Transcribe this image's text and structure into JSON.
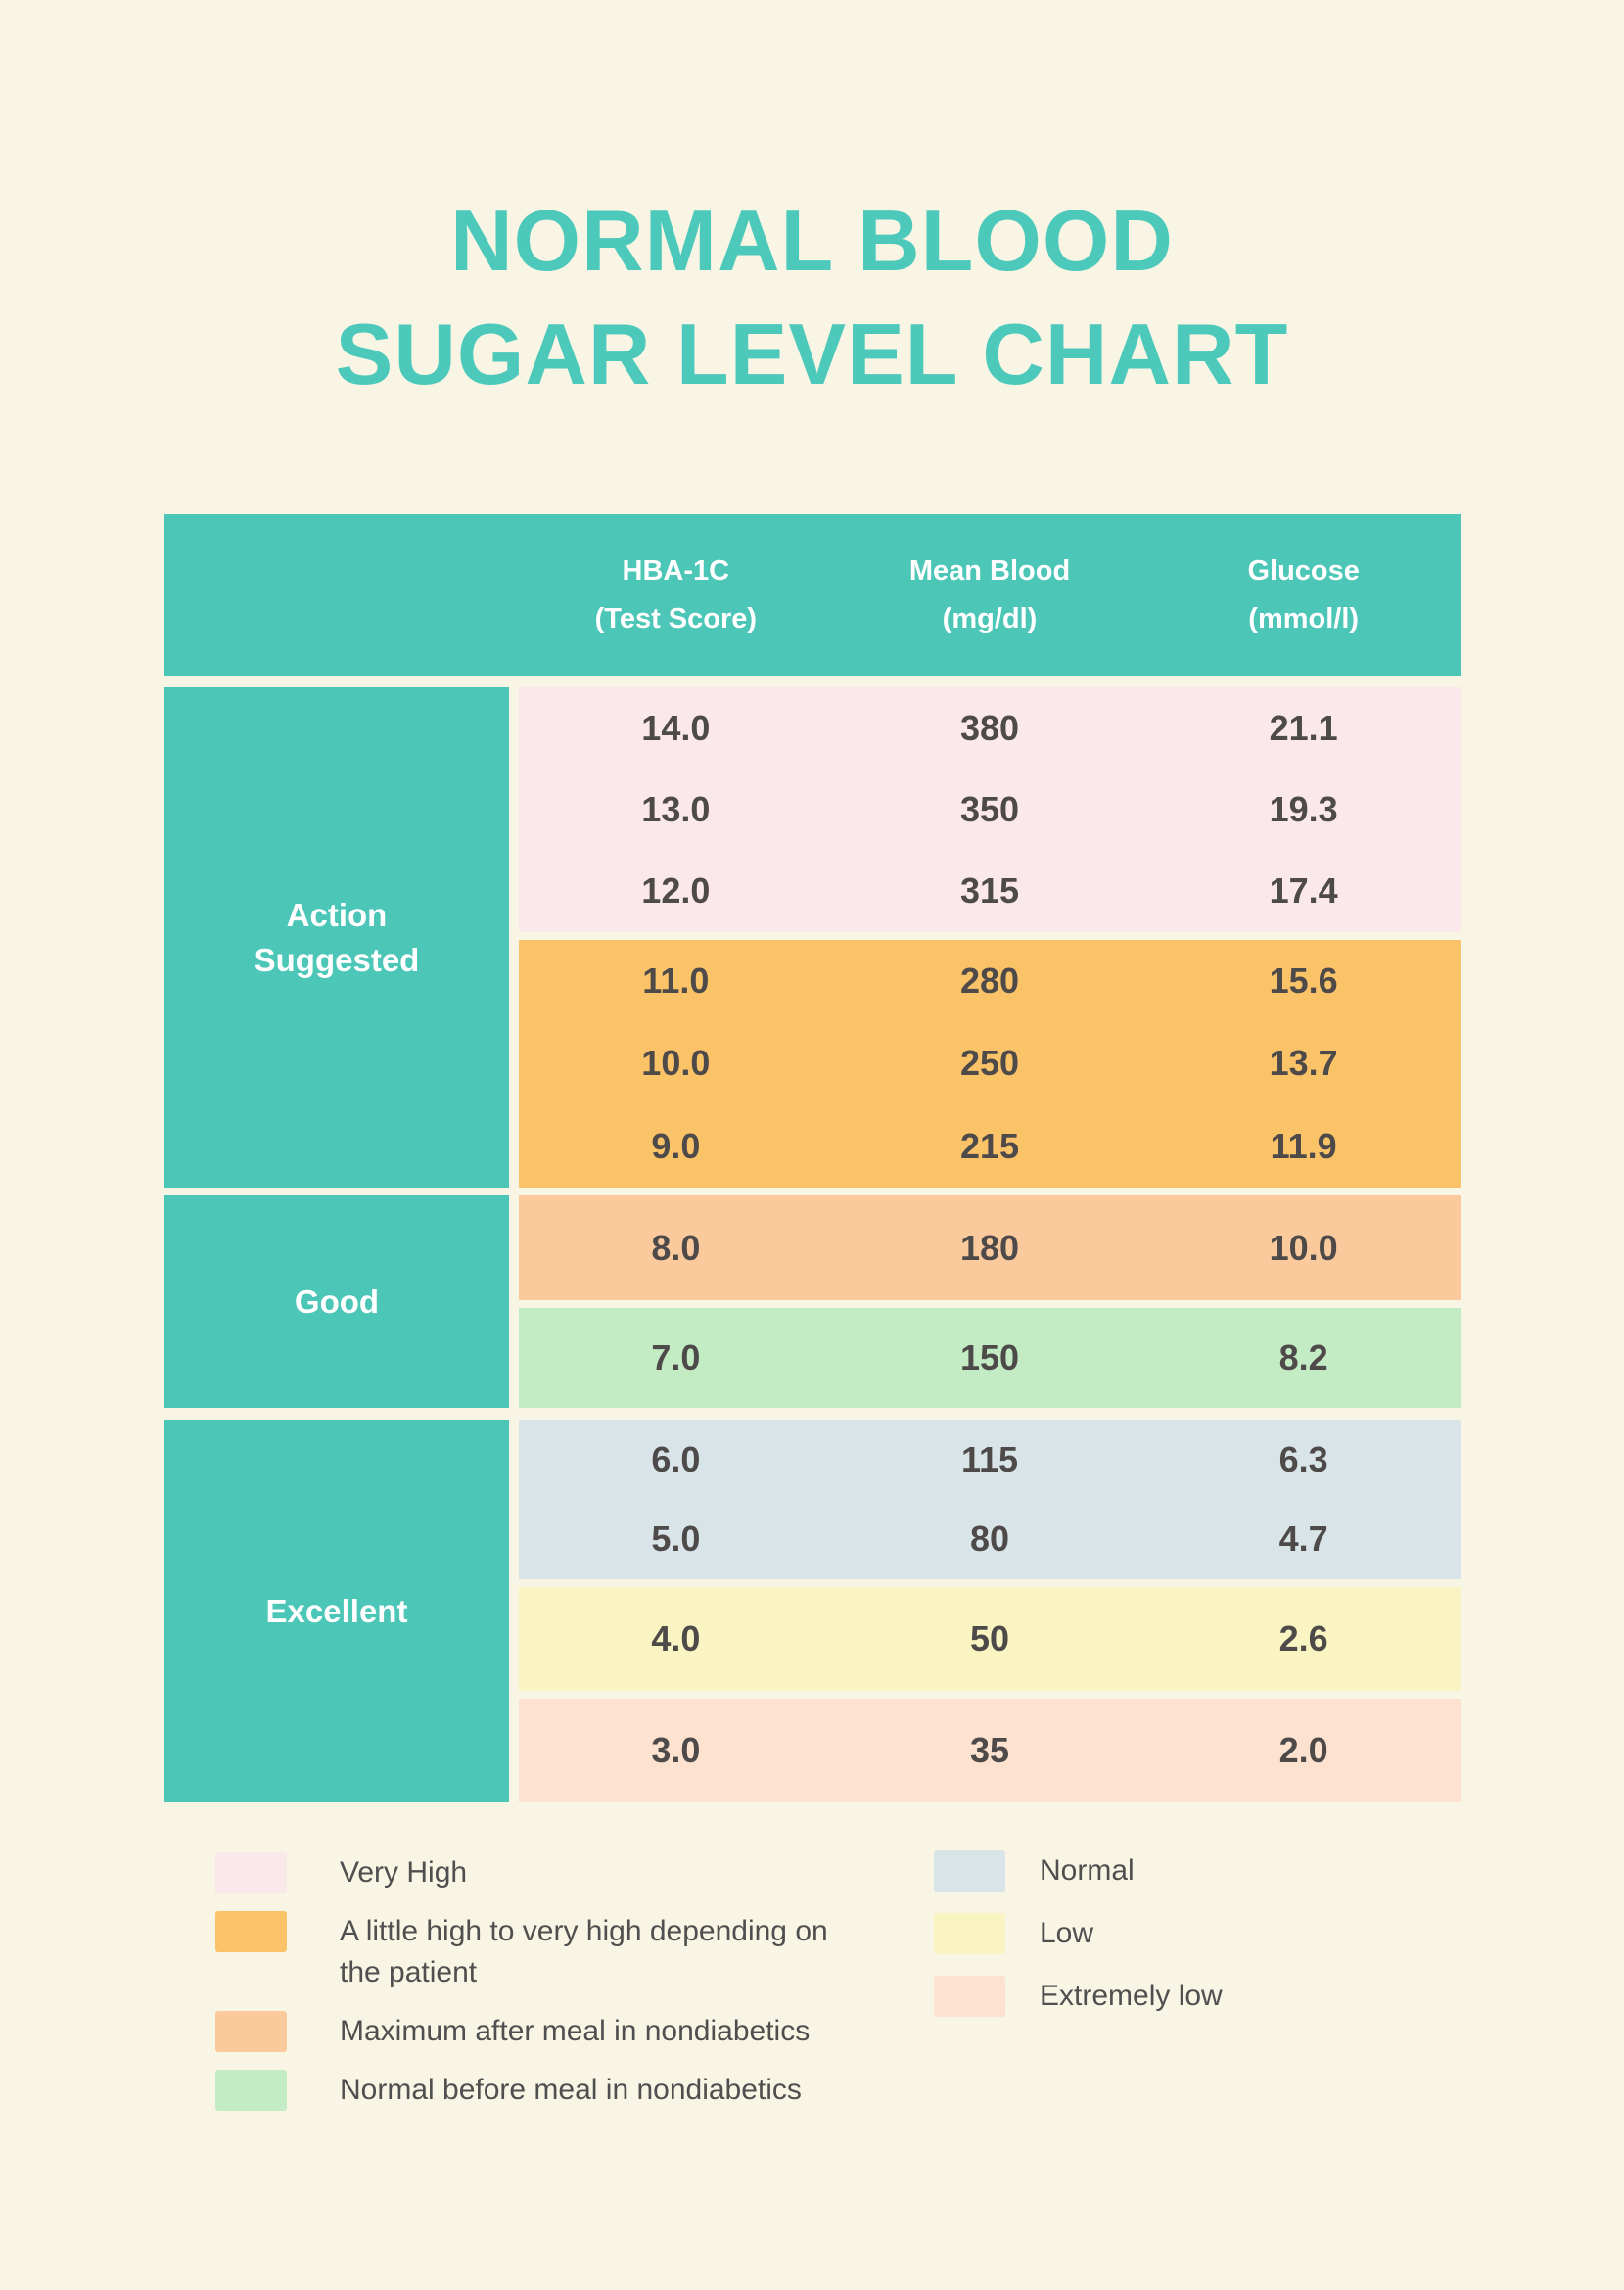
{
  "page": {
    "title_line1": "NORMAL BLOOD",
    "title_line2": "SUGAR LEVEL CHART"
  },
  "colors": {
    "background": "#f8f5e4",
    "teal": "#4bc6b7",
    "title_teal": "#4dc9bb",
    "header_text": "#ffffff",
    "value_text": "#4e4a49",
    "legend_text": "#4f4f4f",
    "very_high": "#fae8ea",
    "high_depend": "#fbc368",
    "max_after_meal": "#fac99c",
    "normal_before_meal": "#c3ebc4",
    "normal": "#d9e4e8",
    "low": "#f9f4c1",
    "extremely_low": "#fce2cf"
  },
  "table": {
    "headers": [
      {
        "line1": "HBA-1C",
        "line2": "(Test Score)"
      },
      {
        "line1": "Mean Blood",
        "line2": "(mg/dl)"
      },
      {
        "line1": "Glucose",
        "line2": "(mmol/l)"
      }
    ],
    "sections": [
      {
        "label": "Action\nSuggested",
        "groups": [
          {
            "category": "very_high",
            "rows": [
              [
                "14.0",
                "380",
                "21.1"
              ],
              [
                "13.0",
                "350",
                "19.3"
              ],
              [
                "12.0",
                "315",
                "17.4"
              ]
            ]
          },
          {
            "category": "high_depend",
            "rows": [
              [
                "11.0",
                "280",
                "15.6"
              ],
              [
                "10.0",
                "250",
                "13.7"
              ],
              [
                "9.0",
                "215",
                "11.9"
              ]
            ]
          }
        ]
      },
      {
        "label": "Good",
        "groups": [
          {
            "category": "max_after_meal",
            "rows": [
              [
                "8.0",
                "180",
                "10.0"
              ]
            ]
          },
          {
            "category": "normal_before_meal",
            "rows": [
              [
                "7.0",
                "150",
                "8.2"
              ]
            ]
          }
        ]
      },
      {
        "label": "Excellent",
        "groups": [
          {
            "category": "normal",
            "rows": [
              [
                "6.0",
                "115",
                "6.3"
              ],
              [
                "5.0",
                "80",
                "4.7"
              ]
            ]
          },
          {
            "category": "low",
            "rows": [
              [
                "4.0",
                "50",
                "2.6"
              ]
            ]
          },
          {
            "category": "extremely_low",
            "rows": [
              [
                "3.0",
                "35",
                "2.0"
              ]
            ]
          }
        ]
      }
    ]
  },
  "legend": {
    "left": [
      {
        "category": "very_high",
        "label": "Very High"
      },
      {
        "category": "high_depend",
        "label": "A little high to very high depending on the patient"
      },
      {
        "category": "max_after_meal",
        "label": "Maximum after meal in nondiabetics"
      },
      {
        "category": "normal_before_meal",
        "label": "Normal before meal in nondiabetics"
      }
    ],
    "right": [
      {
        "category": "normal",
        "label": "Normal"
      },
      {
        "category": "low",
        "label": "Low"
      },
      {
        "category": "extremely_low",
        "label": "Extremely low"
      }
    ]
  },
  "chart_data": {
    "type": "table",
    "title": "NORMAL BLOOD SUGAR LEVEL CHART",
    "columns": [
      "HBA-1C (Test Score)",
      "Mean Blood (mg/dl)",
      "Glucose (mmol/l)"
    ],
    "rows": [
      {
        "assessment": "Action Suggested",
        "category": "Very High",
        "hba1c": 14.0,
        "mean_blood_mg_dl": 380,
        "glucose_mmol_l": 21.1
      },
      {
        "assessment": "Action Suggested",
        "category": "Very High",
        "hba1c": 13.0,
        "mean_blood_mg_dl": 350,
        "glucose_mmol_l": 19.3
      },
      {
        "assessment": "Action Suggested",
        "category": "Very High",
        "hba1c": 12.0,
        "mean_blood_mg_dl": 315,
        "glucose_mmol_l": 17.4
      },
      {
        "assessment": "Action Suggested",
        "category": "A little high to very high depending on the patient",
        "hba1c": 11.0,
        "mean_blood_mg_dl": 280,
        "glucose_mmol_l": 15.6
      },
      {
        "assessment": "Action Suggested",
        "category": "A little high to very high depending on the patient",
        "hba1c": 10.0,
        "mean_blood_mg_dl": 250,
        "glucose_mmol_l": 13.7
      },
      {
        "assessment": "Action Suggested",
        "category": "A little high to very high depending on the patient",
        "hba1c": 9.0,
        "mean_blood_mg_dl": 215,
        "glucose_mmol_l": 11.9
      },
      {
        "assessment": "Good",
        "category": "Maximum after meal in nondiabetics",
        "hba1c": 8.0,
        "mean_blood_mg_dl": 180,
        "glucose_mmol_l": 10.0
      },
      {
        "assessment": "Good",
        "category": "Normal before meal in nondiabetics",
        "hba1c": 7.0,
        "mean_blood_mg_dl": 150,
        "glucose_mmol_l": 8.2
      },
      {
        "assessment": "Excellent",
        "category": "Normal",
        "hba1c": 6.0,
        "mean_blood_mg_dl": 115,
        "glucose_mmol_l": 6.3
      },
      {
        "assessment": "Excellent",
        "category": "Normal",
        "hba1c": 5.0,
        "mean_blood_mg_dl": 80,
        "glucose_mmol_l": 4.7
      },
      {
        "assessment": "Excellent",
        "category": "Low",
        "hba1c": 4.0,
        "mean_blood_mg_dl": 50,
        "glucose_mmol_l": 2.6
      },
      {
        "assessment": "Excellent",
        "category": "Extremely low",
        "hba1c": 3.0,
        "mean_blood_mg_dl": 35,
        "glucose_mmol_l": 2.0
      }
    ],
    "legend_left": [
      "Very High",
      "A little high to very high depending on the patient",
      "Maximum after meal in nondiabetics",
      "Normal before meal in nondiabetics"
    ],
    "legend_right": [
      "Normal",
      "Low",
      "Extremely low"
    ]
  }
}
